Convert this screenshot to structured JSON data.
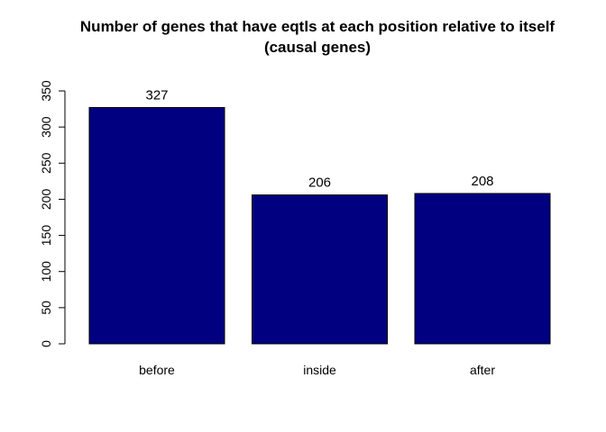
{
  "chart_data": {
    "type": "bar",
    "title": "Number of genes that have eqtls at each position relative to itself",
    "subtitle": "(causal genes)",
    "xlabel": "",
    "ylabel": "",
    "categories": [
      "before",
      "inside",
      "after"
    ],
    "values": [
      327,
      206,
      208
    ],
    "data_labels": [
      "327",
      "206",
      "208"
    ],
    "ylim": [
      0,
      350
    ],
    "yticks": [
      0,
      50,
      100,
      150,
      200,
      250,
      300,
      350
    ],
    "ytick_labels": [
      "0",
      "50",
      "100",
      "150",
      "200",
      "250",
      "300",
      "350"
    ],
    "bar_color": "#000080",
    "grid": false,
    "legend": "none"
  }
}
